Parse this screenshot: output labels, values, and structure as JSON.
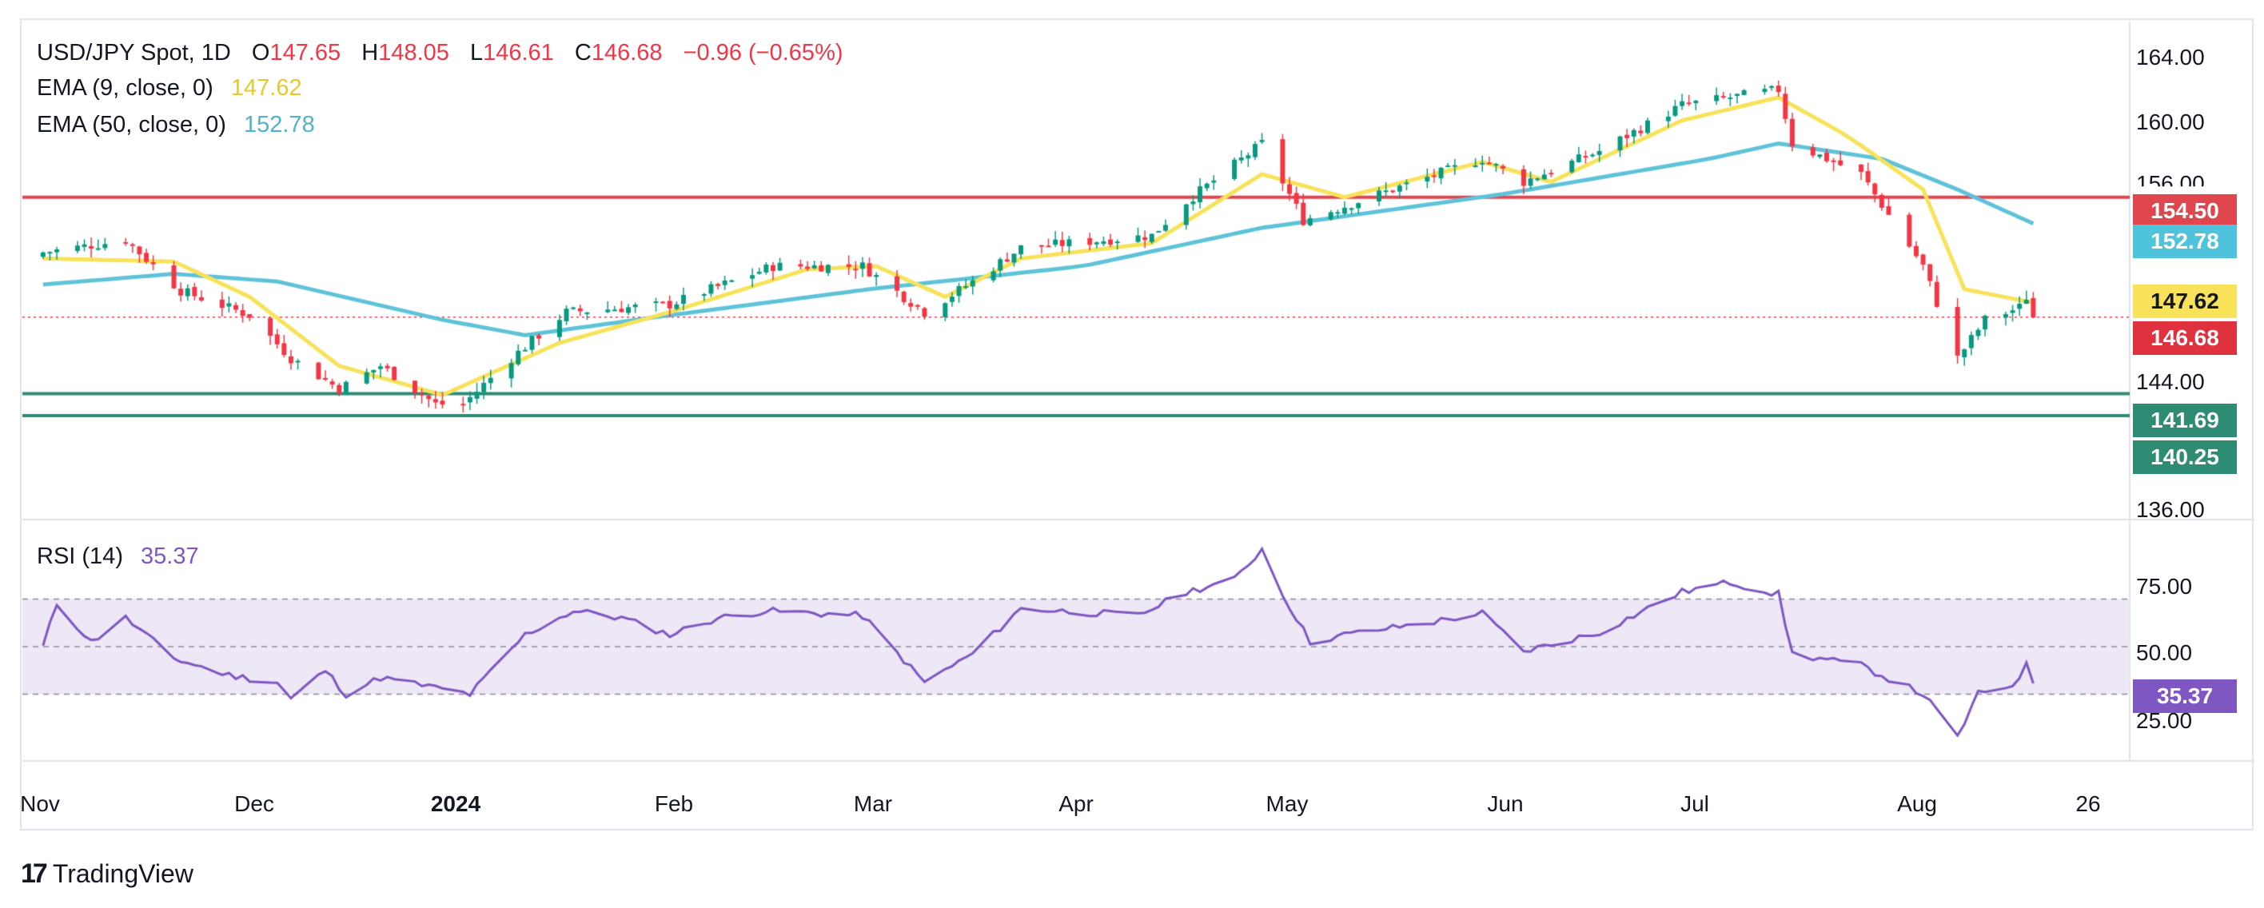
{
  "header": {
    "symbol": "USD/JPY Spot, 1D",
    "open_label": "O",
    "open": "147.65",
    "high_label": "H",
    "high": "148.05",
    "low_label": "L",
    "low": "146.61",
    "close_label": "C",
    "close": "146.68",
    "change": "−0.96 (−0.65%)",
    "ema9_label": "EMA (9, close, 0)",
    "ema9_value": "147.62",
    "ema50_label": "EMA (50, close, 0)",
    "ema50_value": "152.78",
    "rsi_label": "RSI (14)",
    "rsi_value": "35.37"
  },
  "colors": {
    "up": "#089981",
    "down": "#f23645",
    "ema9": "#f7e25a",
    "ema50": "#5ec3d8",
    "resistance": "#e0464e",
    "support": "#2e8b74",
    "rsi": "#7e57c2",
    "rsi_band": "#ede7f6"
  },
  "price_tags": {
    "resistance": "154.50",
    "ema50": "152.78",
    "ema9": "147.62",
    "last": "146.68",
    "support1": "141.69",
    "support2": "140.25",
    "rsi": "35.37"
  },
  "y_axis": [
    "164.00",
    "160.00",
    "156.00",
    "144.00",
    "136.00"
  ],
  "rsi_axis": [
    "75.00",
    "50.00",
    "25.00"
  ],
  "x_axis": [
    "Nov",
    "Dec",
    "2024",
    "Feb",
    "Mar",
    "Apr",
    "May",
    "Jun",
    "Jul",
    "Aug",
    "26"
  ],
  "logo_text": "TradingView",
  "chart_data": {
    "type": "candlestick",
    "ylim": [
      134,
      166
    ],
    "rsi_ylim": [
      0,
      100
    ],
    "levels": {
      "resistance": 154.5,
      "support": [
        141.69,
        140.25
      ]
    },
    "anchors_close": [
      [
        "2023-11-01",
        150.9
      ],
      [
        "2023-11-13",
        151.7
      ],
      [
        "2023-11-21",
        148.4
      ],
      [
        "2023-12-01",
        146.8
      ],
      [
        "2023-12-07",
        144.0
      ],
      [
        "2023-12-14",
        142.0
      ],
      [
        "2023-12-20",
        143.5
      ],
      [
        "2023-12-28",
        141.0
      ],
      [
        "2024-01-01",
        141.0
      ],
      [
        "2024-01-08",
        144.0
      ],
      [
        "2024-01-16",
        147.0
      ],
      [
        "2024-01-31",
        147.5
      ],
      [
        "2024-02-15",
        150.0
      ],
      [
        "2024-02-28",
        150.0
      ],
      [
        "2024-03-08",
        147.0
      ],
      [
        "2024-03-15",
        149.0
      ],
      [
        "2024-03-22",
        151.2
      ],
      [
        "2024-04-10",
        152.0
      ],
      [
        "2024-04-15",
        154.2
      ],
      [
        "2024-04-26",
        158.0
      ],
      [
        "2024-05-02",
        153.0
      ],
      [
        "2024-05-15",
        155.0
      ],
      [
        "2024-05-28",
        157.0
      ],
      [
        "2024-06-03",
        155.5
      ],
      [
        "2024-06-14",
        157.5
      ],
      [
        "2024-06-26",
        160.5
      ],
      [
        "2024-07-10",
        161.5
      ],
      [
        "2024-07-12",
        158.0
      ],
      [
        "2024-07-22",
        156.0
      ],
      [
        "2024-07-31",
        150.0
      ],
      [
        "2024-08-05",
        144.0
      ],
      [
        "2024-08-09",
        146.5
      ],
      [
        "2024-08-14",
        147.3
      ],
      [
        "2024-08-15",
        148.0
      ],
      [
        "2024-08-16",
        146.68
      ]
    ],
    "ema9_anchors": [
      [
        "2023-11-01",
        150.5
      ],
      [
        "2023-11-20",
        150.3
      ],
      [
        "2023-12-01",
        148.0
      ],
      [
        "2023-12-14",
        143.5
      ],
      [
        "2023-12-29",
        141.6
      ],
      [
        "2024-01-15",
        145.0
      ],
      [
        "2024-01-31",
        147.0
      ],
      [
        "2024-02-20",
        149.8
      ],
      [
        "2024-03-01",
        150.0
      ],
      [
        "2024-03-11",
        148.0
      ],
      [
        "2024-03-22",
        150.5
      ],
      [
        "2024-04-10",
        151.5
      ],
      [
        "2024-04-26",
        156.0
      ],
      [
        "2024-05-08",
        154.5
      ],
      [
        "2024-05-28",
        156.8
      ],
      [
        "2024-06-07",
        155.5
      ],
      [
        "2024-06-26",
        159.5
      ],
      [
        "2024-07-10",
        161.0
      ],
      [
        "2024-07-20",
        158.5
      ],
      [
        "2024-07-31",
        155.0
      ],
      [
        "2024-08-06",
        148.5
      ],
      [
        "2024-08-16",
        147.62
      ]
    ],
    "ema50_anchors": [
      [
        "2023-11-01",
        148.8
      ],
      [
        "2023-11-20",
        149.5
      ],
      [
        "2023-12-05",
        149.0
      ],
      [
        "2023-12-29",
        146.5
      ],
      [
        "2024-01-10",
        145.5
      ],
      [
        "2024-01-31",
        146.8
      ],
      [
        "2024-02-29",
        148.5
      ],
      [
        "2024-03-31",
        150.0
      ],
      [
        "2024-04-26",
        152.5
      ],
      [
        "2024-05-31",
        154.7
      ],
      [
        "2024-06-30",
        157.0
      ],
      [
        "2024-07-10",
        158.0
      ],
      [
        "2024-07-25",
        157.0
      ],
      [
        "2024-08-05",
        155.0
      ],
      [
        "2024-08-16",
        152.78
      ]
    ],
    "rsi_anchors": [
      [
        "2023-11-01",
        50
      ],
      [
        "2023-11-03",
        68
      ],
      [
        "2023-11-08",
        52
      ],
      [
        "2023-11-13",
        62
      ],
      [
        "2023-11-20",
        45
      ],
      [
        "2023-11-28",
        38
      ],
      [
        "2023-12-05",
        35
      ],
      [
        "2023-12-07",
        28
      ],
      [
        "2023-12-12",
        40
      ],
      [
        "2023-12-15",
        30
      ],
      [
        "2023-12-20",
        37
      ],
      [
        "2024-01-02",
        30
      ],
      [
        "2024-01-10",
        55
      ],
      [
        "2024-01-17",
        65
      ],
      [
        "2024-01-24",
        62
      ],
      [
        "2024-01-31",
        55
      ],
      [
        "2024-02-07",
        62
      ],
      [
        "2024-02-14",
        65
      ],
      [
        "2024-02-28",
        63
      ],
      [
        "2024-03-08",
        35
      ],
      [
        "2024-03-15",
        47
      ],
      [
        "2024-03-22",
        66
      ],
      [
        "2024-04-08",
        63
      ],
      [
        "2024-04-15",
        73
      ],
      [
        "2024-04-22",
        78
      ],
      [
        "2024-04-26",
        91
      ],
      [
        "2024-04-29",
        72
      ],
      [
        "2024-05-03",
        52
      ],
      [
        "2024-05-08",
        55
      ],
      [
        "2024-05-20",
        60
      ],
      [
        "2024-05-28",
        64
      ],
      [
        "2024-06-03",
        48
      ],
      [
        "2024-06-14",
        56
      ],
      [
        "2024-06-26",
        73
      ],
      [
        "2024-07-03",
        77
      ],
      [
        "2024-07-10",
        72
      ],
      [
        "2024-07-12",
        47
      ],
      [
        "2024-07-22",
        42
      ],
      [
        "2024-07-31",
        30
      ],
      [
        "2024-08-05",
        12
      ],
      [
        "2024-08-08",
        30
      ],
      [
        "2024-08-13",
        34
      ],
      [
        "2024-08-15",
        42
      ],
      [
        "2024-08-16",
        35.37
      ]
    ]
  }
}
